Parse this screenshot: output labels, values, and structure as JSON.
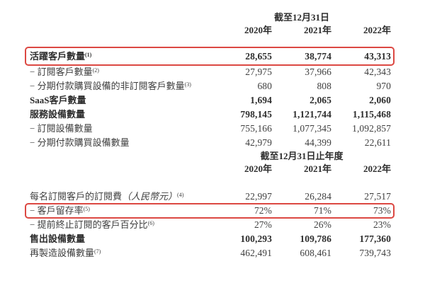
{
  "page": {
    "background": "#ffffff",
    "text_color": "#3f3f3f",
    "bold_text_color": "#2e2e2e",
    "highlight_color": "#dc4842"
  },
  "table1": {
    "period_header": "截至12月31日",
    "year_headers": [
      "2020年",
      "2021年",
      "2022年"
    ],
    "rows": [
      {
        "label": "活躍客戶數量",
        "sup": "(1)",
        "values": [
          "28,655",
          "38,774",
          "43,313"
        ]
      },
      {
        "label": "− 訂閱客戶數量",
        "sup": "(2)",
        "values": [
          "27,975",
          "37,966",
          "42,343"
        ]
      },
      {
        "label": "− 分期付款購買設備的非訂閱客戶數量",
        "sup": "(3)",
        "values": [
          "680",
          "808",
          "970"
        ]
      },
      {
        "label": "SaaS客戶數量",
        "values": [
          "1,694",
          "2,065",
          "2,060"
        ]
      },
      {
        "label": "服務設備數量",
        "values": [
          "798,145",
          "1,121,744",
          "1,115,468"
        ]
      },
      {
        "label": "− 訂閱設備數量",
        "values": [
          "755,166",
          "1,077,345",
          "1,092,857"
        ]
      },
      {
        "label": "− 分期付款購買設備數量",
        "values": [
          "42,979",
          "44,399",
          "22,611"
        ]
      }
    ]
  },
  "table2": {
    "period_header": "截至12月31日止年度",
    "year_headers": [
      "2020年",
      "2021年",
      "2022年"
    ],
    "rows": [
      {
        "label": "每名訂閱客戶的訂閱費",
        "label_italic": "（人民幣元）",
        "sup": "(4)",
        "values": [
          "22,997",
          "26,284",
          "27,517"
        ]
      },
      {
        "label": "− 客戶留存率",
        "sup": "(5)",
        "values": [
          "72%",
          "71%",
          "73%"
        ]
      },
      {
        "label": "− 提前終止訂閱的客戶百分比",
        "sup": "(6)",
        "values": [
          "27%",
          "26%",
          "23%"
        ]
      },
      {
        "label": "售出設備數量",
        "values": [
          "100,293",
          "109,786",
          "177,360"
        ]
      },
      {
        "label": "再製造設備數量",
        "sup": "(7)",
        "values": [
          "462,491",
          "608,461",
          "739,743"
        ]
      }
    ]
  }
}
